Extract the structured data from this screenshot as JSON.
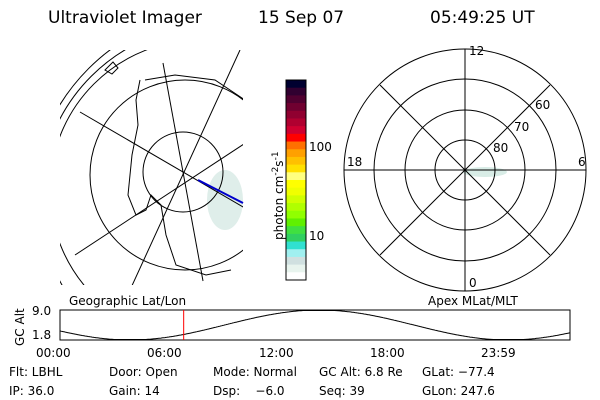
{
  "header": {
    "title": "Ultraviolet Imager",
    "date": "15 Sep 07",
    "time": "05:49:25 UT"
  },
  "colorbar": {
    "label": "photon cm",
    "exp1": "-2",
    "s": "s",
    "exp2": "-1",
    "ticks": [
      "100",
      "10"
    ],
    "colors": [
      "#000030",
      "#300030",
      "#500030",
      "#700030",
      "#900030",
      "#b00030",
      "#d00030",
      "#ff0000",
      "#ff7000",
      "#ffa000",
      "#ffc000",
      "#ffe000",
      "#ffff80",
      "#ffff00",
      "#f0ff00",
      "#d0ff00",
      "#b0ff00",
      "#90ff00",
      "#60f000",
      "#40e040",
      "#30d060",
      "#30e0d0",
      "#a0f0f0",
      "#d0e0e0",
      "#e8f4ee",
      "#ffffff"
    ]
  },
  "polar": {
    "mlt_labels": [
      "12",
      "6",
      "0",
      "18"
    ],
    "lat_labels": [
      "60",
      "70",
      "80"
    ]
  },
  "map_labels": {
    "left": "Geographic Lat/Lon",
    "right": "Apex MLat/MLT"
  },
  "altitude": {
    "ylabel": "GC Alt",
    "yticks": [
      "9.0",
      "1.8"
    ],
    "xticks": [
      "00:00",
      "06:00",
      "12:00",
      "18:00",
      "23:59"
    ],
    "marker_hour": 5.82,
    "marker_color": "#ff0000"
  },
  "info": [
    [
      "Flt: LBHL",
      "Door: Open",
      "Mode: Normal",
      "GC Alt: 6.8 Re",
      "GLat: −77.4"
    ],
    [
      "IP: 36.0",
      "Gain: 14",
      "Dsp:    −6.0",
      "Seq: 39",
      "GLon: 247.6"
    ]
  ]
}
